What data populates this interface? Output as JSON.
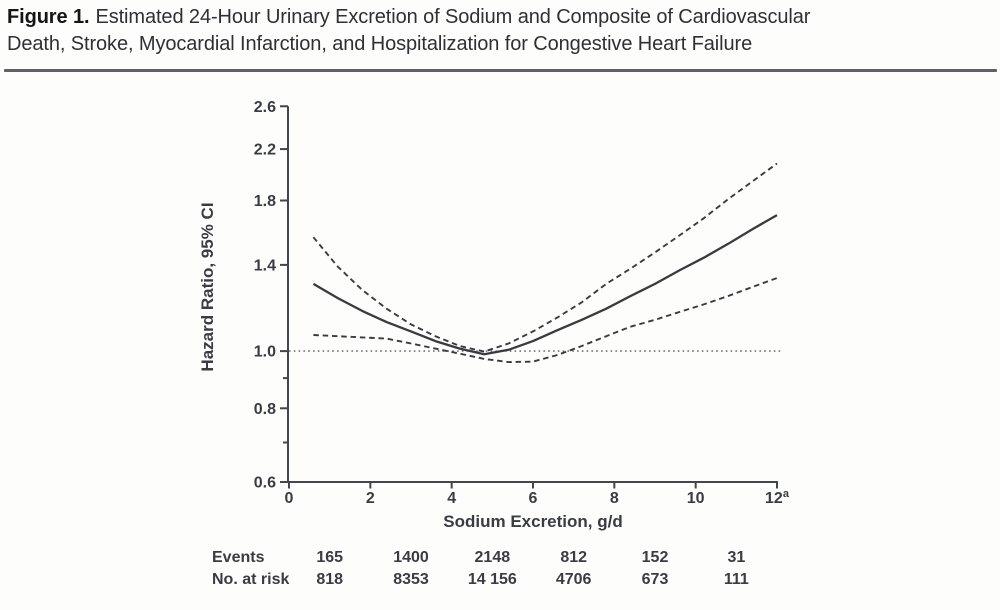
{
  "figure": {
    "label": "Figure 1.",
    "title_line1": "Estimated 24-Hour Urinary Excretion of Sodium and Composite of Cardiovascular",
    "title_line2": "Death, Stroke, Myocardial Infarction, and Hospitalization for Congestive Heart Failure"
  },
  "colors": {
    "ink": "#393c42",
    "axis": "#43464b",
    "line": "#393b3f",
    "dotted": "#5a5d61",
    "rule": "#5d6065",
    "background": "#fdfdfc"
  },
  "chart_data": {
    "type": "line",
    "xlabel": "Sodium Excretion, g/d",
    "ylabel": "Hazard Ratio, 95% CI",
    "x_scale": "linear",
    "y_scale": "log",
    "xlim": [
      0,
      12
    ],
    "ylim": [
      0.6,
      2.6
    ],
    "x_ticks": [
      0,
      2,
      4,
      6,
      8,
      10,
      12
    ],
    "x_tick_labels": [
      "0",
      "2",
      "4",
      "6",
      "8",
      "10",
      "12"
    ],
    "x_footnote_marker": "a",
    "y_major_ticks": [
      2.6,
      2.2,
      1.8,
      1.4,
      1.0,
      0.8,
      0.6
    ],
    "y_minor_ticks": [
      0.9,
      0.7
    ],
    "reference_line_y": 1.0,
    "grid": false,
    "legend": "none",
    "x": [
      0.6,
      1.2,
      1.8,
      2.4,
      3.0,
      3.6,
      4.2,
      4.8,
      5.4,
      6.0,
      6.6,
      7.2,
      7.8,
      8.4,
      9.0,
      9.6,
      10.2,
      10.8,
      11.4,
      12.0
    ],
    "series": [
      {
        "name": "hazard-ratio",
        "style": "solid",
        "values": [
          1.3,
          1.23,
          1.17,
          1.12,
          1.08,
          1.04,
          1.01,
          0.988,
          1.005,
          1.04,
          1.085,
          1.13,
          1.18,
          1.24,
          1.3,
          1.37,
          1.44,
          1.52,
          1.61,
          1.7
        ]
      },
      {
        "name": "ci-upper",
        "style": "dashed",
        "values": [
          1.56,
          1.39,
          1.27,
          1.18,
          1.11,
          1.06,
          1.02,
          0.998,
          1.03,
          1.08,
          1.14,
          1.21,
          1.3,
          1.38,
          1.47,
          1.57,
          1.68,
          1.81,
          1.94,
          2.08
        ]
      },
      {
        "name": "ci-lower",
        "style": "dashed",
        "values": [
          1.065,
          1.06,
          1.055,
          1.05,
          1.03,
          1.01,
          0.99,
          0.97,
          0.958,
          0.96,
          0.985,
          1.02,
          1.06,
          1.1,
          1.13,
          1.165,
          1.2,
          1.24,
          1.285,
          1.33
        ]
      }
    ]
  },
  "risk_table": {
    "column_x_gd": [
      1,
      3,
      5,
      7,
      9,
      11
    ],
    "rows": [
      {
        "label": "Events",
        "values": [
          "165",
          "1400",
          "2148",
          "812",
          "152",
          "31"
        ]
      },
      {
        "label": "No. at risk",
        "values": [
          "818",
          "8353",
          "14 156",
          "4706",
          "673",
          "111"
        ]
      }
    ]
  }
}
